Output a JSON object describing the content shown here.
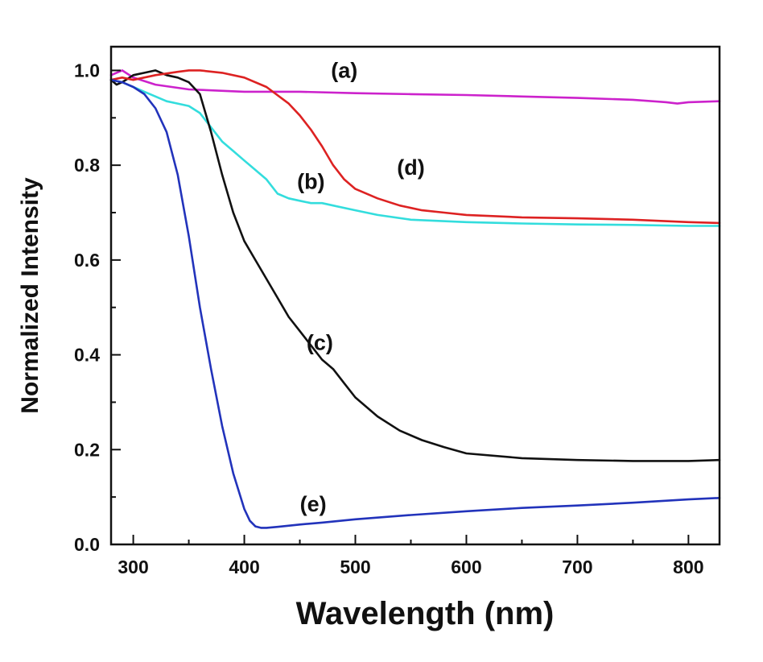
{
  "chart_data": {
    "type": "line",
    "title": "",
    "xlabel": "Wavelength (nm)",
    "ylabel": "Normalized Intensity",
    "xlim": [
      280,
      828
    ],
    "ylim": [
      0.0,
      1.05
    ],
    "xticks": [
      300,
      400,
      500,
      600,
      700,
      800
    ],
    "xtick_labels": [
      "300",
      "400",
      "500",
      "600",
      "700",
      "800"
    ],
    "yticks": [
      0.0,
      0.2,
      0.4,
      0.6,
      0.8,
      1.0
    ],
    "ytick_labels": [
      "0.0",
      "0.2",
      "0.4",
      "0.6",
      "0.8",
      "1.0"
    ],
    "grid": false,
    "series": [
      {
        "name": "(a)",
        "color": "#cc22cc",
        "label_at": [
          490,
          0.985
        ],
        "x": [
          280,
          290,
          300,
          320,
          350,
          400,
          450,
          500,
          550,
          600,
          650,
          700,
          750,
          780,
          790,
          800,
          828
        ],
        "y": [
          0.99,
          1.0,
          0.985,
          0.97,
          0.96,
          0.955,
          0.955,
          0.952,
          0.95,
          0.948,
          0.945,
          0.942,
          0.938,
          0.933,
          0.93,
          0.933,
          0.935
        ]
      },
      {
        "name": "(b)",
        "color": "#33dddd",
        "label_at": [
          460,
          0.75
        ],
        "x": [
          280,
          290,
          300,
          310,
          320,
          330,
          340,
          350,
          360,
          370,
          380,
          390,
          400,
          410,
          420,
          430,
          440,
          450,
          460,
          470,
          480,
          500,
          520,
          550,
          600,
          650,
          700,
          750,
          800,
          828
        ],
        "y": [
          0.98,
          0.975,
          0.965,
          0.955,
          0.945,
          0.935,
          0.93,
          0.925,
          0.91,
          0.88,
          0.85,
          0.83,
          0.81,
          0.79,
          0.77,
          0.74,
          0.73,
          0.725,
          0.72,
          0.72,
          0.715,
          0.705,
          0.695,
          0.685,
          0.68,
          0.677,
          0.675,
          0.674,
          0.672,
          0.672
        ]
      },
      {
        "name": "(c)",
        "color": "#111111",
        "label_at": [
          468,
          0.41
        ],
        "x": [
          280,
          285,
          290,
          300,
          310,
          320,
          330,
          340,
          350,
          360,
          370,
          380,
          390,
          400,
          410,
          420,
          430,
          440,
          450,
          460,
          470,
          480,
          490,
          500,
          520,
          540,
          560,
          580,
          600,
          650,
          700,
          750,
          800,
          828
        ],
        "y": [
          0.98,
          0.97,
          0.975,
          0.99,
          0.995,
          1.0,
          0.99,
          0.985,
          0.975,
          0.95,
          0.87,
          0.78,
          0.7,
          0.64,
          0.6,
          0.56,
          0.52,
          0.48,
          0.45,
          0.42,
          0.39,
          0.37,
          0.34,
          0.31,
          0.27,
          0.24,
          0.22,
          0.205,
          0.192,
          0.182,
          0.178,
          0.176,
          0.176,
          0.178
        ]
      },
      {
        "name": "(d)",
        "color": "#dd2222",
        "label_at": [
          550,
          0.78
        ],
        "x": [
          280,
          290,
          300,
          320,
          340,
          350,
          360,
          380,
          400,
          420,
          440,
          450,
          460,
          470,
          480,
          490,
          500,
          520,
          540,
          560,
          580,
          600,
          650,
          700,
          750,
          800,
          828
        ],
        "y": [
          0.98,
          0.985,
          0.98,
          0.99,
          0.997,
          1.0,
          1.0,
          0.995,
          0.985,
          0.965,
          0.93,
          0.905,
          0.875,
          0.84,
          0.8,
          0.77,
          0.75,
          0.73,
          0.715,
          0.705,
          0.7,
          0.695,
          0.69,
          0.688,
          0.685,
          0.68,
          0.678
        ]
      },
      {
        "name": "(e)",
        "color": "#2233bb",
        "label_at": [
          462,
          0.07
        ],
        "x": [
          280,
          290,
          300,
          310,
          320,
          330,
          340,
          350,
          360,
          370,
          380,
          390,
          400,
          405,
          410,
          415,
          420,
          430,
          450,
          470,
          500,
          550,
          600,
          650,
          700,
          750,
          800,
          828
        ],
        "y": [
          0.98,
          0.975,
          0.965,
          0.95,
          0.92,
          0.87,
          0.78,
          0.65,
          0.5,
          0.37,
          0.25,
          0.15,
          0.075,
          0.05,
          0.038,
          0.035,
          0.035,
          0.037,
          0.042,
          0.046,
          0.053,
          0.062,
          0.07,
          0.077,
          0.082,
          0.088,
          0.095,
          0.098
        ]
      }
    ]
  }
}
